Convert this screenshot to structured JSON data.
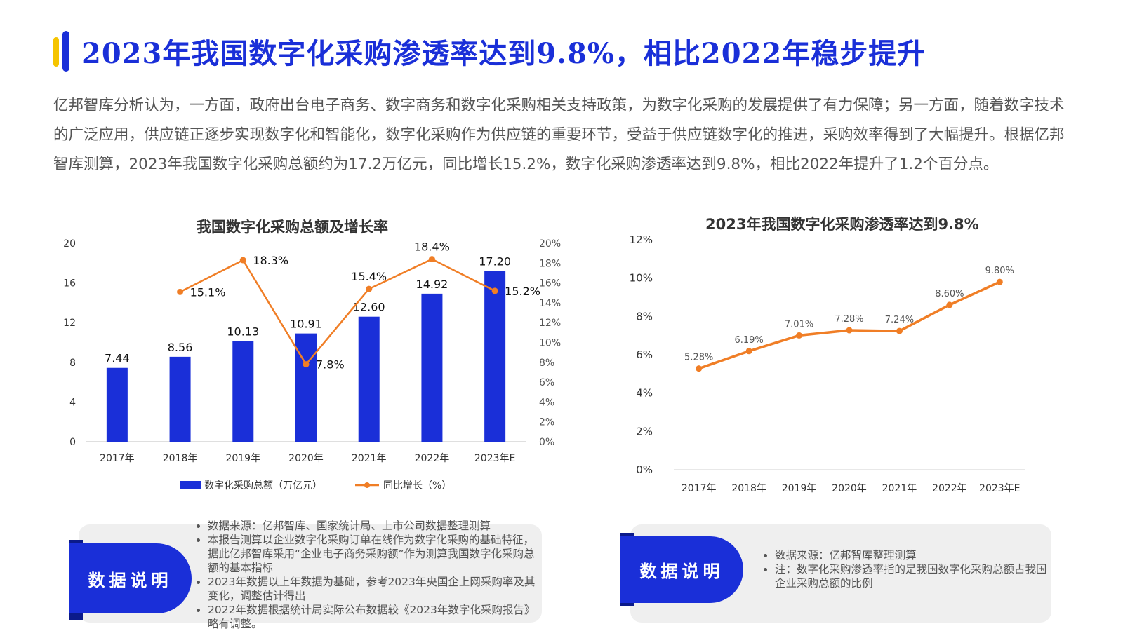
{
  "page": {
    "title": "2023年我国数字化采购渗透率达到9.8%，相比2022年稳步提升",
    "paragraph": "亿邦智库分析认为，一方面，政府出台电子商务、数字商务和数字化采购相关支持政策，为数字化采购的发展提供了有力保障；另一方面，随着数字技术的广泛应用，供应链正逐步实现数字化和智能化，数字化采购作为供应链的重要环节，受益于供应链数字化的推进，采购效率得到了大幅提升。根据亿邦智库测算，2023年我国数字化采购总额约为17.2万亿元，同比增长15.2%，数字化采购渗透率达到9.8%，相比2022年提升了1.2个百分点。"
  },
  "colors": {
    "accent_blue": "#1a2fd8",
    "accent_yellow": "#f5c400",
    "line_orange": "#f07e26"
  },
  "chart_data": [
    {
      "type": "bar",
      "title": "我国数字化采购总额及增长率",
      "categories": [
        "2017年",
        "2018年",
        "2019年",
        "2020年",
        "2021年",
        "2022年",
        "2023年E"
      ],
      "series": [
        {
          "name": "数字化采购总额（万亿元）",
          "type": "bar",
          "axis": "left",
          "values": [
            7.44,
            8.56,
            10.13,
            10.91,
            12.6,
            14.92,
            17.2
          ],
          "labels": [
            "7.44",
            "8.56",
            "10.13",
            "10.91",
            "12.60",
            "14.92",
            "17.20"
          ]
        },
        {
          "name": "同比增长（%）",
          "type": "line",
          "axis": "right",
          "values": [
            null,
            15.1,
            18.3,
            7.8,
            15.4,
            18.4,
            15.2
          ],
          "labels": [
            "",
            "15.1%",
            "18.3%",
            "7.8%",
            "15.4%",
            "18.4%",
            "15.2%"
          ]
        }
      ],
      "ylim": [
        0,
        20
      ],
      "y2lim": [
        0,
        20
      ],
      "yticks": [
        "0",
        "4",
        "8",
        "12",
        "16",
        "20"
      ],
      "y2ticks": [
        "0%",
        "2%",
        "4%",
        "6%",
        "8%",
        "10%",
        "12%",
        "14%",
        "16%",
        "18%",
        "20%"
      ],
      "legend_position": "bottom",
      "grid": false
    },
    {
      "type": "line",
      "title": "2023年我国数字化采购渗透率达到9.8%",
      "categories": [
        "2017年",
        "2018年",
        "2019年",
        "2020年",
        "2021年",
        "2022年",
        "2023年E"
      ],
      "series": [
        {
          "values": [
            5.28,
            6.19,
            7.01,
            7.28,
            7.24,
            8.6,
            9.8
          ],
          "labels": [
            "5.28%",
            "6.19%",
            "7.01%",
            "7.28%",
            "7.24%",
            "8.60%",
            "9.80%"
          ]
        }
      ],
      "ylim": [
        0,
        12
      ],
      "yticks": [
        "0%",
        "2%",
        "4%",
        "6%",
        "8%",
        "10%",
        "12%"
      ],
      "grid": false
    }
  ],
  "notes": [
    {
      "badge": "数据说明",
      "items": [
        "数据来源：亿邦智库、国家统计局、上市公司数据整理测算",
        "本报告测算以企业数字化采购订单在线作为数字化采购的基础特征，据此亿邦智库采用“企业电子商务采购额”作为测算我国数字化采购总额的基本指标",
        "2023年数据以上年数据为基础，参考2023年央国企上网采购率及其变化，调整估计得出",
        "2022年数据根据统计局实际公布数据较《2023年数字化采购报告》略有调整。"
      ]
    },
    {
      "badge": "数据说明",
      "items": [
        "数据来源：亿邦智库整理测算",
        "注：数字化采购渗透率指的是我国数字化采购总额占我国企业采购总额的比例"
      ]
    }
  ]
}
